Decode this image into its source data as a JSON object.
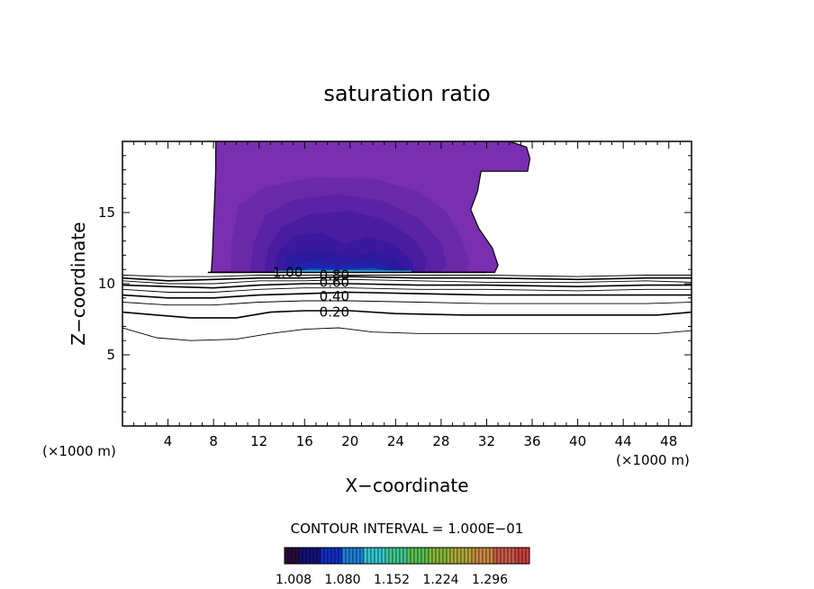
{
  "chart_data": {
    "type": "contour",
    "title": "saturation ratio",
    "xlabel": "X−coordinate",
    "ylabel": "Z−coordinate",
    "x_unit": "(×1000 m)",
    "y_unit": "(×1000 m)",
    "xlim": [
      0,
      50
    ],
    "ylim": [
      0,
      20
    ],
    "x_ticks": [
      4,
      8,
      12,
      16,
      20,
      24,
      28,
      32,
      36,
      40,
      44,
      48
    ],
    "y_ticks": [
      5,
      10,
      15
    ],
    "x_tick_labels": [
      "4",
      "8",
      "12",
      "16",
      "20",
      "24",
      "28",
      "32",
      "36",
      "40",
      "44",
      "48"
    ],
    "y_tick_labels": [
      "5",
      "10",
      "15"
    ],
    "contour_interval_text": "CONTOUR INTERVAL = 1.000E−01",
    "contour_lines": [
      {
        "level": 0.1,
        "label": "",
        "points": [
          [
            0,
            6.9
          ],
          [
            3,
            6.2
          ],
          [
            6,
            6.0
          ],
          [
            10,
            6.1
          ],
          [
            13,
            6.5
          ],
          [
            16,
            6.8
          ],
          [
            19,
            6.9
          ],
          [
            22,
            6.6
          ],
          [
            26,
            6.5
          ],
          [
            30,
            6.5
          ],
          [
            36,
            6.5
          ],
          [
            42,
            6.5
          ],
          [
            47,
            6.5
          ],
          [
            50,
            6.7
          ]
        ]
      },
      {
        "level": 0.2,
        "label": "0.20",
        "points": [
          [
            0,
            8.0
          ],
          [
            3,
            7.8
          ],
          [
            6,
            7.6
          ],
          [
            10,
            7.6
          ],
          [
            13,
            8.0
          ],
          [
            16,
            8.1
          ],
          [
            20,
            8.1
          ],
          [
            24,
            7.9
          ],
          [
            30,
            7.8
          ],
          [
            36,
            7.8
          ],
          [
            42,
            7.8
          ],
          [
            47,
            7.8
          ],
          [
            50,
            8.0
          ]
        ]
      },
      {
        "level": 0.3,
        "label": "",
        "points": [
          [
            0,
            8.7
          ],
          [
            4,
            8.5
          ],
          [
            8,
            8.5
          ],
          [
            12,
            8.7
          ],
          [
            16,
            8.8
          ],
          [
            20,
            8.8
          ],
          [
            26,
            8.7
          ],
          [
            32,
            8.6
          ],
          [
            40,
            8.6
          ],
          [
            46,
            8.6
          ],
          [
            50,
            8.7
          ]
        ]
      },
      {
        "level": 0.4,
        "label": "0.40",
        "points": [
          [
            0,
            9.2
          ],
          [
            4,
            9.0
          ],
          [
            8,
            9.0
          ],
          [
            12,
            9.2
          ],
          [
            16,
            9.3
          ],
          [
            20,
            9.4
          ],
          [
            26,
            9.3
          ],
          [
            32,
            9.2
          ],
          [
            40,
            9.2
          ],
          [
            46,
            9.2
          ],
          [
            50,
            9.2
          ]
        ]
      },
      {
        "level": 0.5,
        "label": "",
        "points": [
          [
            0,
            9.6
          ],
          [
            4,
            9.4
          ],
          [
            8,
            9.4
          ],
          [
            12,
            9.6
          ],
          [
            16,
            9.7
          ],
          [
            20,
            9.7
          ],
          [
            26,
            9.6
          ],
          [
            32,
            9.6
          ],
          [
            40,
            9.5
          ],
          [
            46,
            9.6
          ],
          [
            50,
            9.6
          ]
        ]
      },
      {
        "level": 0.6,
        "label": "0.60",
        "points": [
          [
            0,
            9.9
          ],
          [
            4,
            9.8
          ],
          [
            8,
            9.7
          ],
          [
            12,
            9.9
          ],
          [
            16,
            10.0
          ],
          [
            20,
            10.0
          ],
          [
            26,
            9.9
          ],
          [
            32,
            9.9
          ],
          [
            40,
            9.8
          ],
          [
            46,
            9.9
          ],
          [
            50,
            9.9
          ]
        ]
      },
      {
        "level": 0.7,
        "label": "",
        "points": [
          [
            0,
            10.2
          ],
          [
            4,
            10.0
          ],
          [
            8,
            10.0
          ],
          [
            12,
            10.2
          ],
          [
            16,
            10.2
          ],
          [
            20,
            10.3
          ],
          [
            26,
            10.2
          ],
          [
            32,
            10.1
          ],
          [
            40,
            10.1
          ],
          [
            46,
            10.2
          ],
          [
            50,
            10.1
          ]
        ]
      },
      {
        "level": 0.8,
        "label": "0.80",
        "points": [
          [
            0,
            10.4
          ],
          [
            4,
            10.2
          ],
          [
            8,
            10.3
          ],
          [
            12,
            10.4
          ],
          [
            16,
            10.4
          ],
          [
            20,
            10.5
          ],
          [
            26,
            10.4
          ],
          [
            32,
            10.4
          ],
          [
            40,
            10.3
          ],
          [
            46,
            10.4
          ],
          [
            50,
            10.4
          ]
        ]
      },
      {
        "level": 0.9,
        "label": "",
        "points": [
          [
            0,
            10.6
          ],
          [
            4,
            10.5
          ],
          [
            8,
            10.5
          ],
          [
            12,
            10.6
          ],
          [
            16,
            10.6
          ],
          [
            20,
            10.6
          ],
          [
            26,
            10.6
          ],
          [
            32,
            10.6
          ],
          [
            40,
            10.5
          ],
          [
            46,
            10.6
          ],
          [
            50,
            10.6
          ]
        ]
      },
      {
        "level": 1.0,
        "label": "1.00",
        "points": [
          [
            7.5,
            10.8
          ],
          [
            12,
            10.8
          ],
          [
            16,
            10.8
          ],
          [
            20,
            10.8
          ],
          [
            26,
            10.8
          ],
          [
            32,
            10.8
          ]
        ]
      }
    ],
    "contour_labels": [
      {
        "text": "1.00",
        "x": 13.2,
        "y": 10.8
      },
      {
        "text": "0.80",
        "x": 17.3,
        "y": 10.6
      },
      {
        "text": "0.60",
        "x": 17.3,
        "y": 10.1
      },
      {
        "text": "0.40",
        "x": 17.3,
        "y": 9.1
      },
      {
        "text": "0.20",
        "x": 17.3,
        "y": 8.0
      }
    ],
    "shaded_region": {
      "description_levels": [
        1.008,
        1.08,
        1.152,
        1.224,
        1.296
      ],
      "outer_boundary": [
        [
          7.8,
          10.8
        ],
        [
          7.9,
          12
        ],
        [
          8.0,
          14
        ],
        [
          8.1,
          16
        ],
        [
          8.2,
          18
        ],
        [
          8.2,
          20
        ],
        [
          34,
          20
        ],
        [
          35.5,
          19.6
        ],
        [
          35.8,
          18.8
        ],
        [
          35.6,
          17.9
        ],
        [
          31.5,
          17.9
        ],
        [
          31.2,
          16.5
        ],
        [
          30.6,
          15.2
        ],
        [
          31.3,
          13.9
        ],
        [
          32.5,
          12.5
        ],
        [
          33.0,
          11.3
        ],
        [
          32.7,
          10.8
        ]
      ],
      "bands": [
        {
          "value": 1.01,
          "color": "#6a2aa8",
          "points": [
            [
              9.5,
              10.8
            ],
            [
              9.6,
              13
            ],
            [
              10.2,
              15.5
            ],
            [
              12.5,
              16.8
            ],
            [
              17,
              17.5
            ],
            [
              22,
              17.4
            ],
            [
              26,
              16.5
            ],
            [
              28.5,
              15
            ],
            [
              29.8,
              13.2
            ],
            [
              30.5,
              11.5
            ],
            [
              30.3,
              10.8
            ]
          ]
        },
        {
          "value": 1.02,
          "color": "#5a22a4",
          "points": [
            [
              11.2,
              10.8
            ],
            [
              11.5,
              12.8
            ],
            [
              12.5,
              14.8
            ],
            [
              15,
              15.9
            ],
            [
              19,
              16.3
            ],
            [
              23,
              15.8
            ],
            [
              26,
              14.6
            ],
            [
              28,
              12.9
            ],
            [
              28.5,
              11.3
            ],
            [
              28,
              10.8
            ]
          ]
        },
        {
          "value": 1.03,
          "color": "#4a1ca0",
          "points": [
            [
              12.5,
              10.8
            ],
            [
              12.8,
              12.5
            ],
            [
              14,
              14.0
            ],
            [
              16.5,
              14.9
            ],
            [
              20,
              15.1
            ],
            [
              23,
              14.5
            ],
            [
              25.5,
              13.2
            ],
            [
              26.8,
              11.8
            ],
            [
              26.5,
              10.8
            ]
          ]
        },
        {
          "value": 1.04,
          "color": "#3a18a0",
          "points": [
            [
              13.3,
              10.8
            ],
            [
              13.7,
              12.3
            ],
            [
              15.2,
              13.4
            ],
            [
              17.5,
              13.6
            ],
            [
              19.5,
              12.8
            ],
            [
              21.5,
              13.3
            ],
            [
              23.8,
              12.8
            ],
            [
              25.5,
              11.6
            ],
            [
              25.6,
              10.8
            ]
          ]
        },
        {
          "value": 1.05,
          "color": "#2c1a9e",
          "points": [
            [
              14.0,
              10.8
            ],
            [
              14.5,
              11.9
            ],
            [
              16,
              12.4
            ],
            [
              18,
              12.4
            ],
            [
              19.8,
              11.9
            ],
            [
              22,
              12.2
            ],
            [
              24,
              11.7
            ],
            [
              25,
              11.0
            ],
            [
              25.0,
              10.8
            ]
          ]
        },
        {
          "value": 1.06,
          "color": "#1f24ac",
          "points": [
            [
              14.6,
              10.8
            ],
            [
              15.2,
              11.4
            ],
            [
              17,
              11.6
            ],
            [
              19,
              11.3
            ],
            [
              21.5,
              11.5
            ],
            [
              23.5,
              11.2
            ],
            [
              24.6,
              10.8
            ]
          ]
        },
        {
          "value": 1.08,
          "color": "#1b48c8",
          "points": [
            [
              15.0,
              10.8
            ],
            [
              16.5,
              11.1
            ],
            [
              19,
              11.0
            ],
            [
              22,
              11.1
            ],
            [
              24.3,
              10.8
            ]
          ]
        },
        {
          "value": 1.12,
          "color": "#2a9ad8",
          "points": [
            [
              13.4,
              10.8
            ],
            [
              15,
              10.95
            ],
            [
              20,
              10.95
            ],
            [
              25.2,
              10.9
            ],
            [
              25.4,
              10.8
            ]
          ]
        }
      ]
    },
    "colorbar": {
      "label_values": [
        "1.008",
        "1.080",
        "1.152",
        "1.224",
        "1.296"
      ],
      "colors": [
        "#2a0a3a",
        "#14107a",
        "#1030c8",
        "#1c80d8",
        "#34c8d0",
        "#40c890",
        "#58c050",
        "#88b838",
        "#b0a838",
        "#c88a40",
        "#c85a48",
        "#c84040"
      ]
    }
  }
}
